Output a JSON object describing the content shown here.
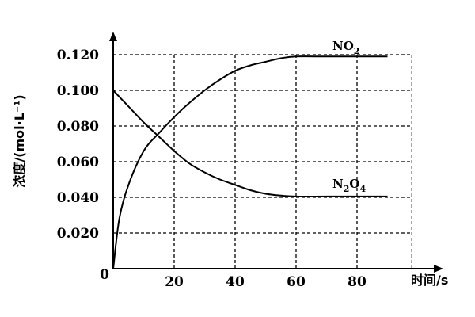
{
  "chart_data": {
    "type": "line",
    "xlabel": "时间/s",
    "ylabel": "浓度/(mol·L⁻¹)",
    "origin_label": "0",
    "x_ticks": [
      "20",
      "40",
      "60",
      "80"
    ],
    "x_tick_values": [
      20,
      40,
      60,
      80
    ],
    "y_ticks": [
      "0.020",
      "0.040",
      "0.060",
      "0.080",
      "0.100",
      "0.120"
    ],
    "y_tick_values": [
      0.02,
      0.04,
      0.06,
      0.08,
      0.1,
      0.12
    ],
    "xlim": [
      0,
      100
    ],
    "ylim": [
      0,
      0.14
    ],
    "grid": true,
    "grid_style": "dashed",
    "series": [
      {
        "name": "NO₂",
        "label_main": "NO",
        "label_sub": "2",
        "x": [
          0,
          2,
          5,
          10,
          15,
          20,
          25,
          30,
          35,
          40,
          45,
          50,
          55,
          60,
          70,
          80,
          90
        ],
        "values": [
          0,
          0.028,
          0.047,
          0.066,
          0.076,
          0.085,
          0.093,
          0.1,
          0.106,
          0.111,
          0.114,
          0.116,
          0.118,
          0.119,
          0.119,
          0.119,
          0.119
        ]
      },
      {
        "name": "N₂O₄",
        "label_parts": [
          "N",
          "2",
          "O",
          "4"
        ],
        "x": [
          0,
          5,
          10,
          15,
          20,
          25,
          30,
          35,
          40,
          45,
          50,
          55,
          60,
          70,
          80,
          90
        ],
        "values": [
          0.1,
          0.091,
          0.082,
          0.074,
          0.066,
          0.059,
          0.054,
          0.05,
          0.047,
          0.044,
          0.042,
          0.041,
          0.0405,
          0.0405,
          0.0405,
          0.0405
        ]
      }
    ]
  }
}
